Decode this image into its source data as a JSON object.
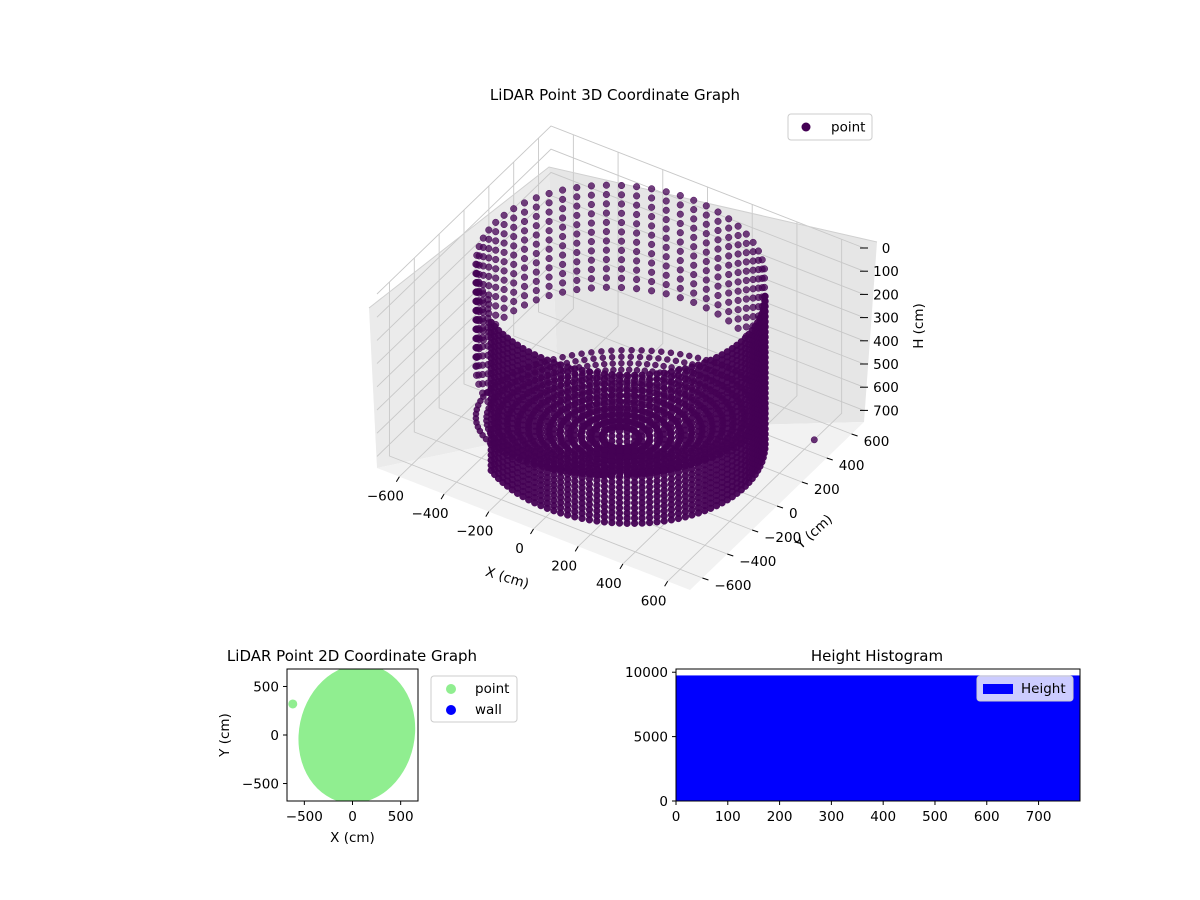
{
  "chart_data": [
    {
      "type": "scatter3d",
      "title": "LiDAR Point 3D Coordinate Graph",
      "xlabel": "X (cm)",
      "ylabel": "Y (cm)",
      "zlabel": "H (cm)",
      "xlim": [
        -700,
        700
      ],
      "ylim": [
        -700,
        700
      ],
      "zlim": [
        0,
        750
      ],
      "z_inverted": true,
      "x_ticks": [
        "−600",
        "−400",
        "−200",
        "0",
        "200",
        "400",
        "600"
      ],
      "y_ticks": [
        "−600",
        "−400",
        "−200",
        "0",
        "200",
        "400",
        "600"
      ],
      "z_ticks": [
        "0",
        "100",
        "200",
        "300",
        "400",
        "500",
        "600",
        "700"
      ],
      "grid": true,
      "legend": {
        "placement": "top-right",
        "entries": [
          "point"
        ]
      },
      "series": [
        {
          "name": "point",
          "color": "#440154",
          "description_values": {
            "wall_radius_cm": 620,
            "wall_height_range_cm": [
              0,
              420
            ],
            "floor_height_cm": 720
          }
        }
      ]
    },
    {
      "type": "scatter",
      "title": "LiDAR Point 2D Coordinate Graph",
      "xlabel": "X (cm)",
      "ylabel": "Y (cm)",
      "xlim": [
        -680,
        680
      ],
      "ylim": [
        -680,
        680
      ],
      "x_ticks": [
        "−500",
        "0",
        "500"
      ],
      "y_ticks": [
        "−500",
        "0",
        "500"
      ],
      "legend": {
        "placement": "outside-right",
        "entries": [
          "point",
          "wall"
        ]
      },
      "series": [
        {
          "name": "point",
          "color": "#90ee90",
          "shape": "filled-ellipse",
          "center": [
            0,
            0
          ],
          "radius_x": 600,
          "radius_y": 720,
          "outliers": [
            [
              -620,
              320
            ]
          ]
        },
        {
          "name": "wall",
          "color": "#0000ff",
          "points": []
        }
      ]
    },
    {
      "type": "bar",
      "title": "Height Histogram",
      "xlabel": "",
      "ylabel": "",
      "xlim": [
        0,
        780
      ],
      "ylim": [
        0,
        10000
      ],
      "x_ticks": [
        "0",
        "100",
        "200",
        "300",
        "400",
        "500",
        "600",
        "700"
      ],
      "y_ticks": [
        "0",
        "5000",
        "10000"
      ],
      "legend": {
        "placement": "top-right",
        "entries": [
          "Height"
        ]
      },
      "series": [
        {
          "name": "Height",
          "color": "#0000ff",
          "x_range": [
            0,
            780
          ],
          "value": 9750
        }
      ]
    }
  ]
}
